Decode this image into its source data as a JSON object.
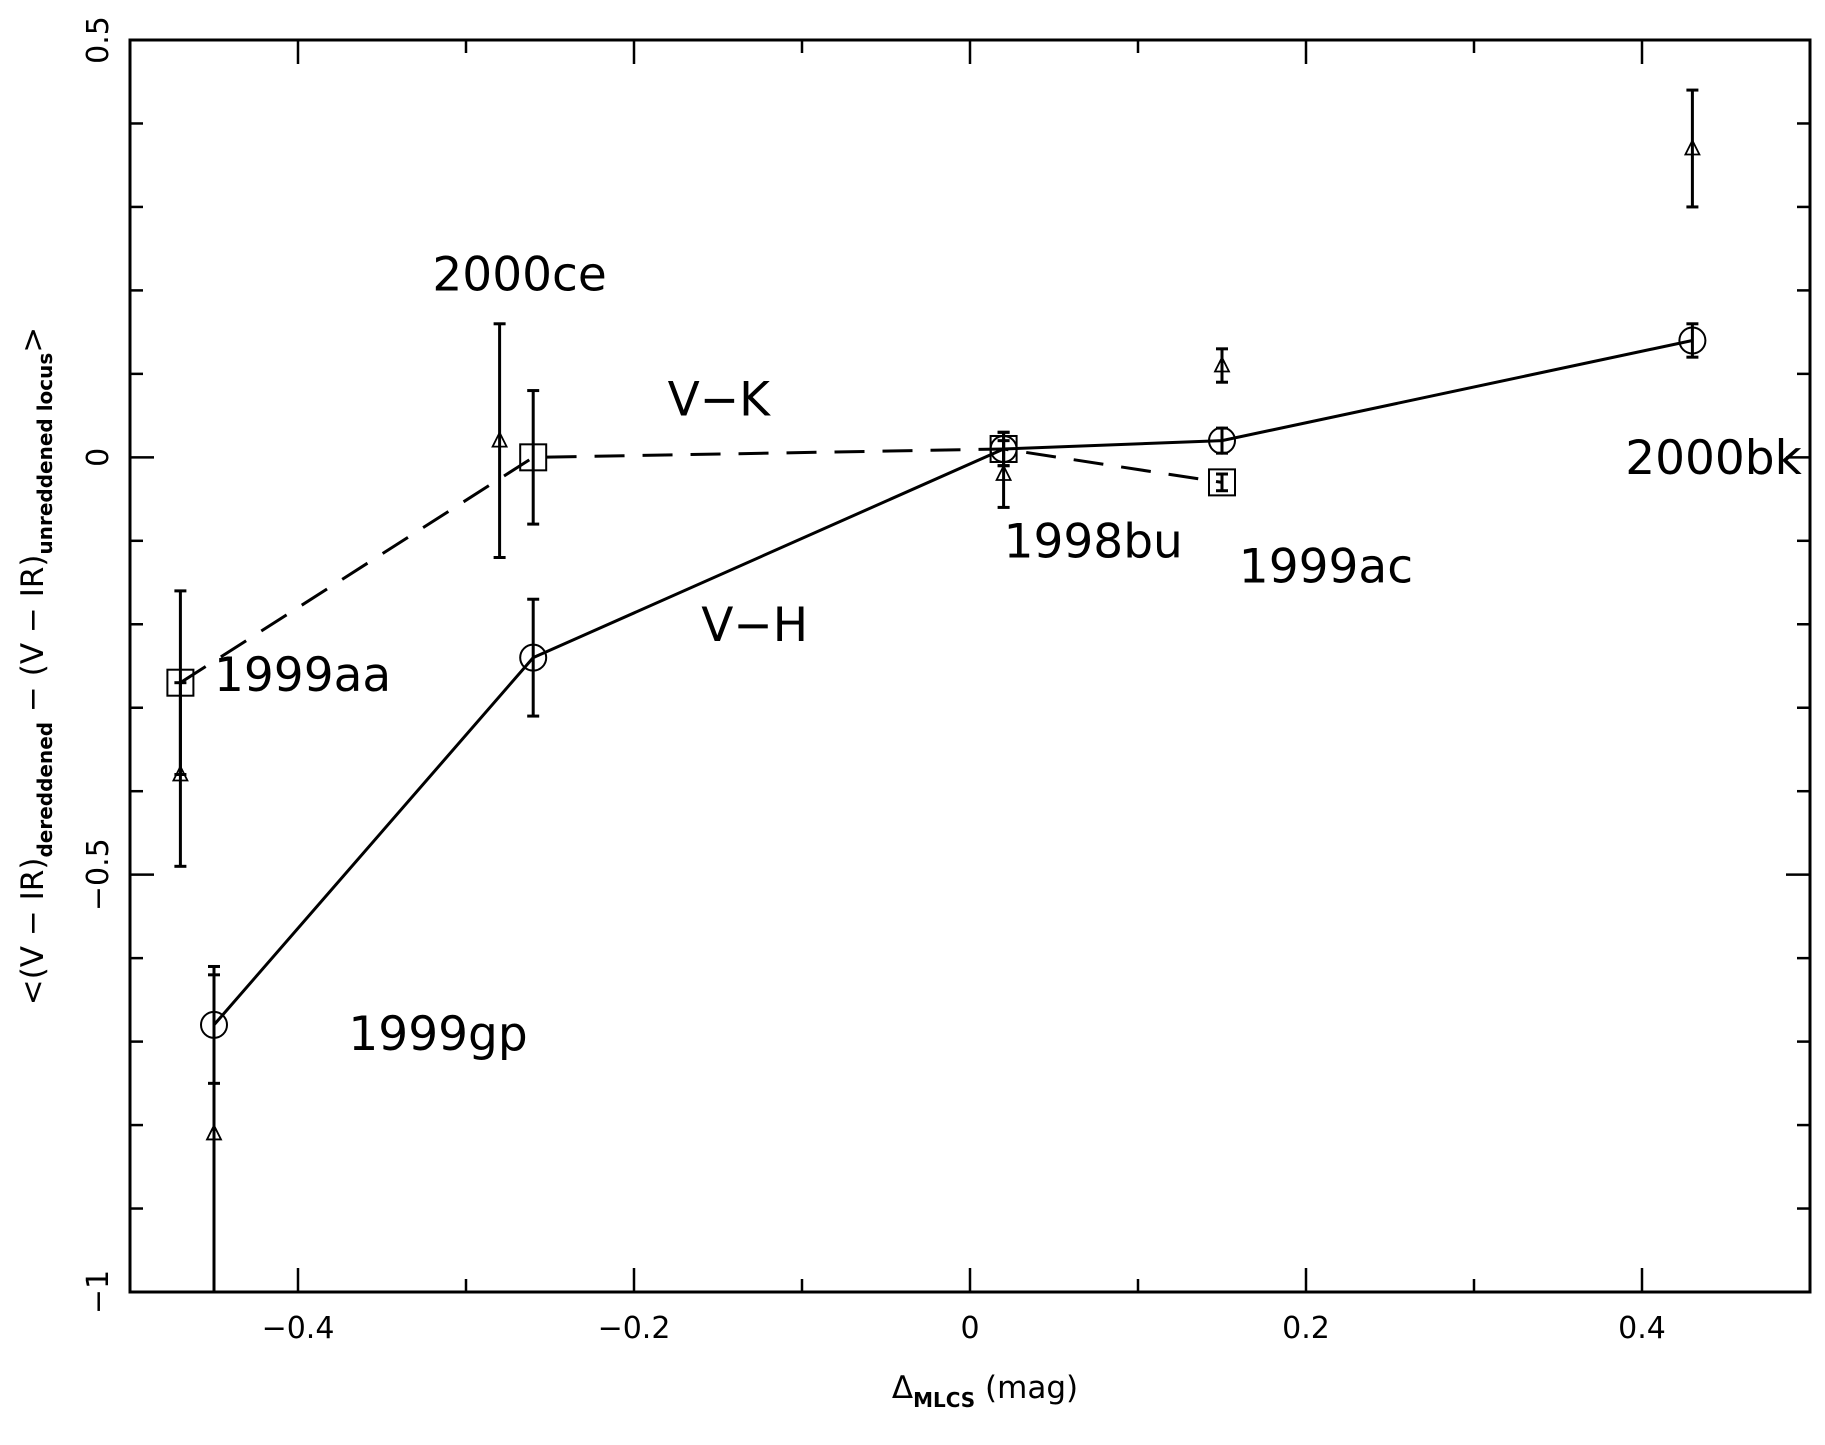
{
  "chart_data": {
    "type": "scatter",
    "xlim": [
      -0.5,
      0.5
    ],
    "ylim": [
      -1,
      0.5
    ],
    "x_ticks": [
      "-0.4",
      "-0.2",
      "0",
      "0.2",
      "0.4"
    ],
    "y_ticks": [
      "-1",
      "-0.5",
      "0",
      "0.5"
    ],
    "xlabel": {
      "main": "Δ",
      "sub": "MLCS",
      "rest": " (mag)"
    },
    "ylabel": {
      "part1": "<(V − IR)",
      "sub1": "dereddened",
      "part2": " − (V − IR)",
      "sub2": "unreddened locus",
      "part3": ">"
    },
    "series": [
      {
        "name": "V−H",
        "marker": "circle",
        "line": "solid",
        "points": [
          {
            "x": -0.45,
            "y": -0.68,
            "err": 0.07
          },
          {
            "x": -0.26,
            "y": -0.24,
            "err": 0.07
          },
          {
            "x": 0.02,
            "y": 0.01,
            "err": 0.02
          },
          {
            "x": 0.15,
            "y": 0.02,
            "err": 0.015
          },
          {
            "x": 0.43,
            "y": 0.14,
            "err": 0.02
          }
        ]
      },
      {
        "name": "V−K",
        "marker": "square",
        "line": "dashed",
        "points": [
          {
            "x": -0.47,
            "y": -0.27,
            "err": 0.11
          },
          {
            "x": -0.26,
            "y": 0.0,
            "err": 0.08
          },
          {
            "x": 0.02,
            "y": 0.01,
            "err": 0.02
          },
          {
            "x": 0.15,
            "y": -0.03,
            "err": 0.01
          }
        ]
      },
      {
        "name": "",
        "marker": "triangle",
        "line": "none",
        "points": [
          {
            "x": -0.47,
            "y": -0.38,
            "err": 0.11
          },
          {
            "x": -0.45,
            "y": -0.81,
            "err": 0.19
          },
          {
            "x": -0.28,
            "y": 0.02,
            "err": 0.14
          },
          {
            "x": 0.02,
            "y": -0.02,
            "err": 0.04
          },
          {
            "x": 0.15,
            "y": 0.11,
            "err": 0.02
          },
          {
            "x": 0.43,
            "y": 0.37,
            "err": 0.07
          }
        ]
      }
    ],
    "annotations": [
      {
        "text": "2000ce",
        "x": -0.32,
        "y": 0.2
      },
      {
        "text": "V−K",
        "x": -0.18,
        "y": 0.05
      },
      {
        "text": "1999aa",
        "x": -0.45,
        "y": -0.28
      },
      {
        "text": "V−H",
        "x": -0.16,
        "y": -0.22
      },
      {
        "text": "1998bu",
        "x": 0.02,
        "y": -0.12
      },
      {
        "text": "1999ac",
        "x": 0.16,
        "y": -0.15
      },
      {
        "text": "2000bk",
        "x": 0.39,
        "y": -0.02
      },
      {
        "text": "1999gp",
        "x": -0.37,
        "y": -0.71
      }
    ]
  }
}
